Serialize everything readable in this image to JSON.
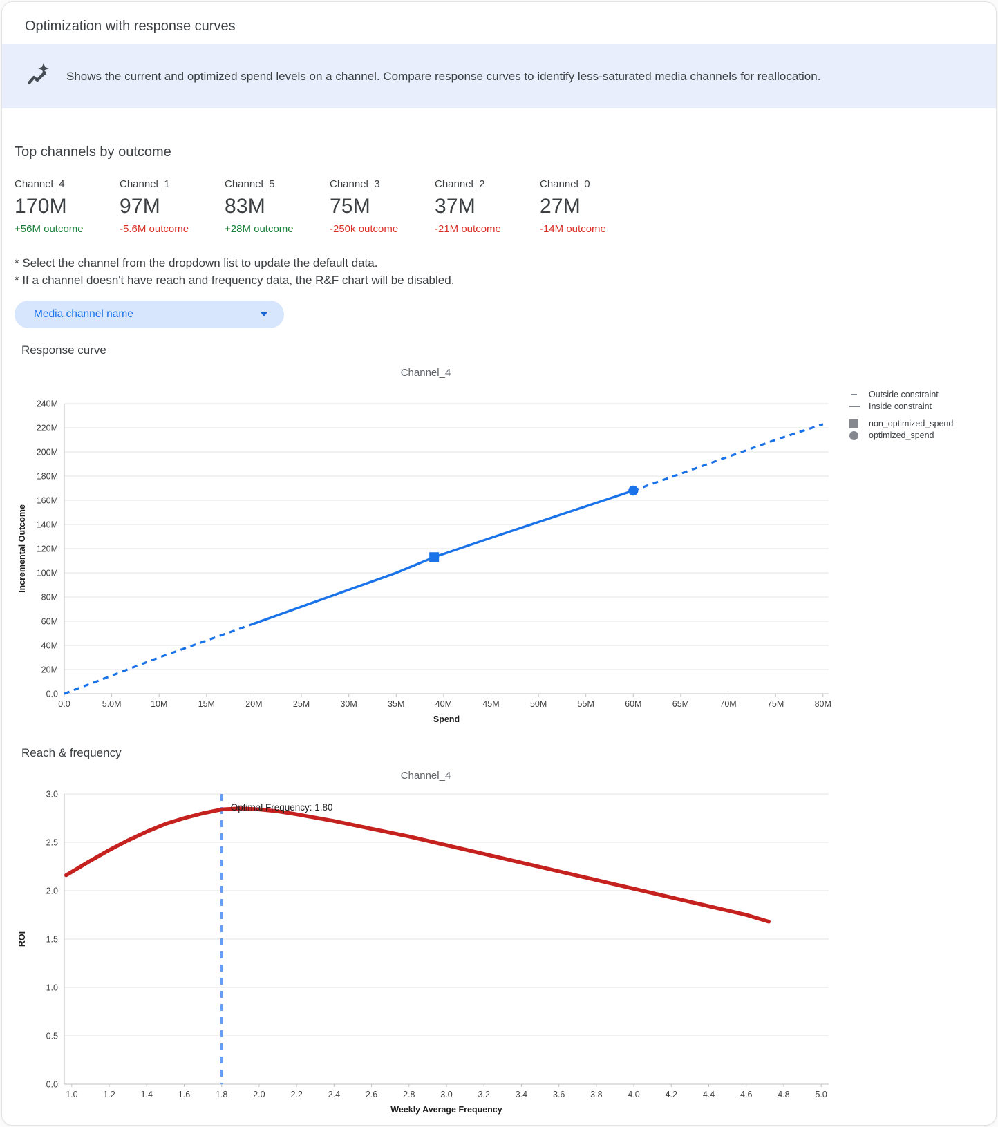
{
  "page": {
    "title": "Optimization with response curves"
  },
  "banner": {
    "icon": "insights-icon",
    "text": "Shows the current and optimized spend levels on a channel. Compare response curves to identify less-saturated media channels for reallocation."
  },
  "top_channels": {
    "heading": "Top channels by outcome",
    "channels": [
      {
        "name": "Channel_4",
        "value": "170M",
        "outcome": "+56M outcome",
        "trend": "positive"
      },
      {
        "name": "Channel_1",
        "value": "97M",
        "outcome": "-5.6M outcome",
        "trend": "negative"
      },
      {
        "name": "Channel_5",
        "value": "83M",
        "outcome": "+28M outcome",
        "trend": "positive"
      },
      {
        "name": "Channel_3",
        "value": "75M",
        "outcome": "-250k outcome",
        "trend": "negative"
      },
      {
        "name": "Channel_2",
        "value": "37M",
        "outcome": "-21M outcome",
        "trend": "negative"
      },
      {
        "name": "Channel_0",
        "value": "27M",
        "outcome": "-14M outcome",
        "trend": "negative"
      }
    ]
  },
  "notes": [
    "* Select the channel from the dropdown list to update the default data.",
    "* If a channel doesn't have reach and frequency data, the R&F chart will be disabled."
  ],
  "dropdown": {
    "label": "Media channel name"
  },
  "sections": {
    "response_curve": "Response curve",
    "reach_frequency": "Reach & frequency"
  },
  "colors": {
    "banner_bg": "#e8eefb",
    "icon": "#474c54",
    "positive": "#188038",
    "negative": "#d93025",
    "response_line": "#1a73e8",
    "rf_line": "#c5221f",
    "optimal_line": "#669df6",
    "gridline": "#e3e3e3",
    "axis_line": "#c2c2c2",
    "legend_marker": "#85898f"
  },
  "chart_data": [
    {
      "type": "line",
      "title": "Channel_4",
      "xlabel": "Spend",
      "ylabel": "Incremental Outcome",
      "x_units": "millions",
      "y_units": "millions",
      "xlim": [
        0,
        80.6
      ],
      "ylim": [
        0,
        240
      ],
      "x_ticks": [
        {
          "v": 0,
          "label": "0.0"
        },
        {
          "v": 5,
          "label": "5.0M"
        },
        {
          "v": 10,
          "label": "10M"
        },
        {
          "v": 15,
          "label": "15M"
        },
        {
          "v": 20,
          "label": "20M"
        },
        {
          "v": 25,
          "label": "25M"
        },
        {
          "v": 30,
          "label": "30M"
        },
        {
          "v": 35,
          "label": "35M"
        },
        {
          "v": 40,
          "label": "40M"
        },
        {
          "v": 45,
          "label": "45M"
        },
        {
          "v": 50,
          "label": "50M"
        },
        {
          "v": 55,
          "label": "55M"
        },
        {
          "v": 60,
          "label": "60M"
        },
        {
          "v": 65,
          "label": "65M"
        },
        {
          "v": 70,
          "label": "70M"
        },
        {
          "v": 75,
          "label": "75M"
        },
        {
          "v": 80,
          "label": "80M"
        }
      ],
      "y_ticks": [
        {
          "v": 0,
          "label": "0.0"
        },
        {
          "v": 20,
          "label": "20M"
        },
        {
          "v": 40,
          "label": "40M"
        },
        {
          "v": 60,
          "label": "60M"
        },
        {
          "v": 80,
          "label": "80M"
        },
        {
          "v": 100,
          "label": "100M"
        },
        {
          "v": 120,
          "label": "120M"
        },
        {
          "v": 140,
          "label": "140M"
        },
        {
          "v": 160,
          "label": "160M"
        },
        {
          "v": 180,
          "label": "180M"
        },
        {
          "v": 200,
          "label": "200M"
        },
        {
          "v": 220,
          "label": "220M"
        },
        {
          "v": 240,
          "label": "240M"
        }
      ],
      "points": [
        [
          0,
          0
        ],
        [
          5,
          15
        ],
        [
          10,
          30
        ],
        [
          15,
          44
        ],
        [
          20,
          58
        ],
        [
          25,
          72
        ],
        [
          30,
          86
        ],
        [
          35,
          100
        ],
        [
          39,
          113
        ],
        [
          45,
          129
        ],
        [
          50,
          142
        ],
        [
          55,
          155
        ],
        [
          60,
          168
        ],
        [
          65,
          182
        ],
        [
          70,
          196
        ],
        [
          75,
          210
        ],
        [
          80,
          223
        ]
      ],
      "solid_range": [
        20,
        60
      ],
      "markers": [
        {
          "shape": "square",
          "name": "non_optimized_spend",
          "x": 39,
          "y": 113
        },
        {
          "shape": "circle",
          "name": "optimized_spend",
          "x": 60,
          "y": 168
        }
      ],
      "legend": [
        {
          "label": "Outside constraint",
          "marker": "dash-short"
        },
        {
          "label": "Inside constraint",
          "marker": "dash-long"
        },
        {
          "label": "non_optimized_spend",
          "marker": "square"
        },
        {
          "label": "optimized_spend",
          "marker": "circle"
        }
      ],
      "legend_position": "right",
      "grid": "horizontal"
    },
    {
      "type": "line",
      "title": "Channel_4",
      "xlabel": "Weekly Average Frequency",
      "ylabel": "ROI",
      "xlim": [
        0.96,
        5.04
      ],
      "ylim": [
        0,
        3.0
      ],
      "x_ticks": [
        {
          "v": 1.0,
          "label": "1.0"
        },
        {
          "v": 1.2,
          "label": "1.2"
        },
        {
          "v": 1.4,
          "label": "1.4"
        },
        {
          "v": 1.6,
          "label": "1.6"
        },
        {
          "v": 1.8,
          "label": "1.8"
        },
        {
          "v": 2.0,
          "label": "2.0"
        },
        {
          "v": 2.2,
          "label": "2.2"
        },
        {
          "v": 2.4,
          "label": "2.4"
        },
        {
          "v": 2.6,
          "label": "2.6"
        },
        {
          "v": 2.8,
          "label": "2.8"
        },
        {
          "v": 3.0,
          "label": "3.0"
        },
        {
          "v": 3.2,
          "label": "3.2"
        },
        {
          "v": 3.4,
          "label": "3.4"
        },
        {
          "v": 3.6,
          "label": "3.6"
        },
        {
          "v": 3.8,
          "label": "3.8"
        },
        {
          "v": 4.0,
          "label": "4.0"
        },
        {
          "v": 4.2,
          "label": "4.2"
        },
        {
          "v": 4.4,
          "label": "4.4"
        },
        {
          "v": 4.6,
          "label": "4.6"
        },
        {
          "v": 4.8,
          "label": "4.8"
        },
        {
          "v": 5.0,
          "label": "5.0"
        }
      ],
      "y_ticks": [
        {
          "v": 0,
          "label": "0.0"
        },
        {
          "v": 0.5,
          "label": "0.5"
        },
        {
          "v": 1.0,
          "label": "1.0"
        },
        {
          "v": 1.5,
          "label": "1.5"
        },
        {
          "v": 2.0,
          "label": "2.0"
        },
        {
          "v": 2.5,
          "label": "2.5"
        },
        {
          "v": 3.0,
          "label": "3.0"
        }
      ],
      "points": [
        [
          0.97,
          2.16
        ],
        [
          1.1,
          2.31
        ],
        [
          1.2,
          2.42
        ],
        [
          1.3,
          2.52
        ],
        [
          1.4,
          2.61
        ],
        [
          1.5,
          2.69
        ],
        [
          1.6,
          2.75
        ],
        [
          1.7,
          2.8
        ],
        [
          1.8,
          2.84
        ],
        [
          1.9,
          2.85
        ],
        [
          2.0,
          2.84
        ],
        [
          2.1,
          2.82
        ],
        [
          2.2,
          2.79
        ],
        [
          2.4,
          2.72
        ],
        [
          2.6,
          2.64
        ],
        [
          2.8,
          2.56
        ],
        [
          3.0,
          2.47
        ],
        [
          3.2,
          2.38
        ],
        [
          3.4,
          2.29
        ],
        [
          3.6,
          2.2
        ],
        [
          3.8,
          2.11
        ],
        [
          4.0,
          2.02
        ],
        [
          4.2,
          1.93
        ],
        [
          4.4,
          1.84
        ],
        [
          4.6,
          1.75
        ],
        [
          4.72,
          1.68
        ]
      ],
      "optimal_frequency": 1.8,
      "annotation": "Optimal Frequency: 1.80",
      "grid": "horizontal"
    }
  ]
}
